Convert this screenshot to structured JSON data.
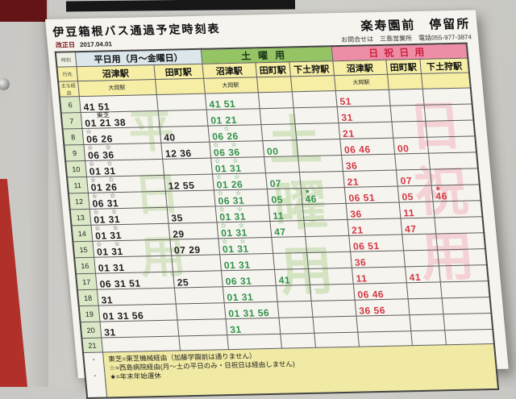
{
  "paper": {
    "title": "伊豆箱根バス通過予定時刻表",
    "revision_label": "改正日",
    "revision_date": "2017.04.01",
    "stop_name": "楽寿園前　停留所",
    "contact": "お問合せは　三島営業所　電話055-977-3874",
    "sections": {
      "weekday": "平日用（月～金曜日）",
      "saturday": "土曜用",
      "holiday": "日祝日用"
    },
    "col_headers": {
      "hour": "時刻",
      "dest": "行先",
      "via": "主な経由",
      "numazu": "沼津駅",
      "tamachi": "田町駅",
      "shimotogari": "下土狩駅",
      "ooka": "大岡駅"
    },
    "watermarks": {
      "weekday": "平日用",
      "saturday": "土曜用",
      "holiday": "日祝用"
    },
    "colors": {
      "weekday_text": "#1d1d1d",
      "saturday_text": "#2f9249",
      "holiday_text": "#d23844",
      "saturday_header": "#95c464",
      "holiday_header": "#ee8da6",
      "frame_red": "#b1302a"
    },
    "rows": [
      {
        "h": "6",
        "c": [
          [
            "",
            "41 51"
          ],
          [
            "",
            ""
          ],
          [
            "",
            "41 51"
          ],
          [
            "",
            ""
          ],
          [
            "",
            ""
          ],
          [
            "",
            "51"
          ],
          [
            "",
            ""
          ],
          [
            "",
            ""
          ]
        ]
      },
      {
        "h": "7",
        "c": [
          [
            " 東芝",
            "01 21 38"
          ],
          [
            "",
            ""
          ],
          [
            "",
            "01 21"
          ],
          [
            "",
            ""
          ],
          [
            "",
            ""
          ],
          [
            "",
            "31"
          ],
          [
            "",
            ""
          ],
          [
            "",
            ""
          ]
        ]
      },
      {
        "h": "8",
        "c": [
          [
            "☆",
            "06 26"
          ],
          [
            "",
            "40"
          ],
          [
            " ☆",
            "06 26"
          ],
          [
            "",
            ""
          ],
          [
            "",
            ""
          ],
          [
            "",
            "21"
          ],
          [
            "",
            ""
          ],
          [
            "",
            ""
          ]
        ]
      },
      {
        "h": "9",
        "c": [
          [
            "☆ ☆",
            "06 36"
          ],
          [
            "",
            "12 36"
          ],
          [
            "☆ ☆",
            "06 36"
          ],
          [
            "",
            "00"
          ],
          [
            "",
            ""
          ],
          [
            "",
            "06 46"
          ],
          [
            "",
            "00"
          ],
          [
            "",
            ""
          ]
        ]
      },
      {
        "h": "10",
        "c": [
          [
            "☆ ☆",
            "01 31"
          ],
          [
            "",
            ""
          ],
          [
            "☆ ☆",
            "01 31"
          ],
          [
            "",
            ""
          ],
          [
            "",
            ""
          ],
          [
            "",
            "36"
          ],
          [
            "",
            ""
          ],
          [
            "",
            ""
          ]
        ]
      },
      {
        "h": "11",
        "c": [
          [
            "☆ ☆",
            "01 26"
          ],
          [
            "",
            "12 55"
          ],
          [
            "☆ ☆",
            "01 26"
          ],
          [
            "",
            "07"
          ],
          [
            "",
            ""
          ],
          [
            "",
            "21"
          ],
          [
            "",
            "07"
          ],
          [
            "",
            ""
          ]
        ]
      },
      {
        "h": "12",
        "c": [
          [
            "☆ ☆",
            "06 31"
          ],
          [
            "",
            ""
          ],
          [
            "☆ ☆",
            "06 31"
          ],
          [
            "",
            "05"
          ],
          [
            "★",
            "46"
          ],
          [
            "",
            "06 51"
          ],
          [
            "",
            "05"
          ],
          [
            "★",
            "46"
          ]
        ]
      },
      {
        "h": "13",
        "c": [
          [
            "☆ ☆",
            "01 31"
          ],
          [
            "",
            "35"
          ],
          [
            "☆ ☆",
            "01 31"
          ],
          [
            "",
            "11"
          ],
          [
            "",
            ""
          ],
          [
            "",
            "36"
          ],
          [
            "",
            "11"
          ],
          [
            "",
            ""
          ]
        ]
      },
      {
        "h": "14",
        "c": [
          [
            "☆ ☆",
            "01 31"
          ],
          [
            "",
            "29"
          ],
          [
            "☆ ☆",
            "01 31"
          ],
          [
            "",
            "47"
          ],
          [
            "",
            ""
          ],
          [
            "",
            "21"
          ],
          [
            "",
            "47"
          ],
          [
            "",
            ""
          ]
        ]
      },
      {
        "h": "15",
        "c": [
          [
            "☆ ☆",
            "01 31"
          ],
          [
            "",
            "07 29"
          ],
          [
            "☆ ☆",
            "01 31"
          ],
          [
            "",
            ""
          ],
          [
            "",
            ""
          ],
          [
            "",
            "06 51"
          ],
          [
            "",
            ""
          ],
          [
            "",
            ""
          ]
        ]
      },
      {
        "h": "16",
        "c": [
          [
            "",
            "01 31"
          ],
          [
            "",
            ""
          ],
          [
            "",
            "01 31"
          ],
          [
            "",
            ""
          ],
          [
            "",
            ""
          ],
          [
            "",
            "36"
          ],
          [
            "",
            ""
          ],
          [
            "",
            ""
          ]
        ]
      },
      {
        "h": "17",
        "c": [
          [
            "",
            "06 31 51"
          ],
          [
            "",
            "25"
          ],
          [
            "",
            "06 31"
          ],
          [
            "",
            "41"
          ],
          [
            "",
            ""
          ],
          [
            "",
            "11"
          ],
          [
            "",
            "41"
          ],
          [
            "",
            ""
          ]
        ]
      },
      {
        "h": "18",
        "c": [
          [
            "",
            "31"
          ],
          [
            "",
            ""
          ],
          [
            "",
            "01 31"
          ],
          [
            "",
            ""
          ],
          [
            "",
            ""
          ],
          [
            "",
            "06 46"
          ],
          [
            "",
            ""
          ],
          [
            "",
            ""
          ]
        ]
      },
      {
        "h": "19",
        "c": [
          [
            "",
            "01 31 56"
          ],
          [
            "",
            ""
          ],
          [
            "",
            "01 31 56"
          ],
          [
            "",
            ""
          ],
          [
            "",
            ""
          ],
          [
            "",
            "36 56"
          ],
          [
            "",
            ""
          ],
          [
            "",
            ""
          ]
        ]
      },
      {
        "h": "20",
        "c": [
          [
            "",
            "31"
          ],
          [
            "",
            ""
          ],
          [
            "",
            "31"
          ],
          [
            "",
            ""
          ],
          [
            "",
            ""
          ],
          [
            "",
            ""
          ],
          [
            "",
            ""
          ],
          [
            "",
            ""
          ]
        ]
      },
      {
        "h": "21",
        "c": [
          [
            "",
            ""
          ],
          [
            "",
            ""
          ],
          [
            "",
            ""
          ],
          [
            "",
            ""
          ],
          [
            "",
            ""
          ],
          [
            "",
            ""
          ],
          [
            "",
            ""
          ],
          [
            "",
            ""
          ]
        ]
      }
    ],
    "notes": [
      "東芝=東芝機械経由（加藤学園前は通りません）",
      "☆=西島病院経由(月～土の平日のみ・日祝日は経由しません)",
      "★=年末年始運休"
    ],
    "footer_side_dots": "・\n・"
  }
}
